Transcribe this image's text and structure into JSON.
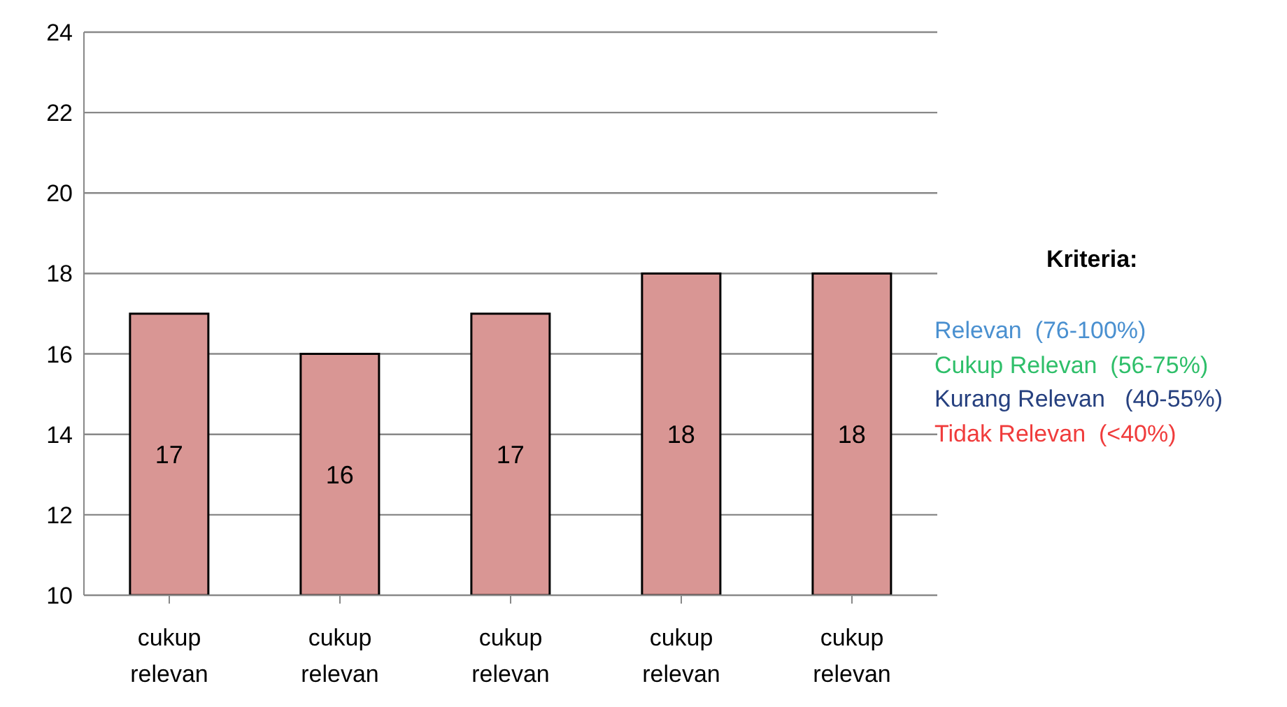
{
  "chart_data": {
    "type": "bar",
    "categories": [
      "cukup relevan",
      "cukup relevan",
      "cukup relevan",
      "cukup relevan",
      "cukup relevan"
    ],
    "values": [
      17,
      16,
      17,
      18,
      18
    ],
    "color": "#d99694",
    "ylim": [
      10,
      24
    ],
    "yticks": [
      10,
      12,
      14,
      16,
      18,
      20,
      22,
      24
    ],
    "grid": "y",
    "data_labels": true,
    "legend_title": "Kriteria:",
    "annotations": [
      "Relevan  (76-100%)",
      "Cukup Relevan  (56-75%)",
      "Kurang Relevan   (40-55%)",
      "Tidak Relevan  (<40%)"
    ]
  }
}
